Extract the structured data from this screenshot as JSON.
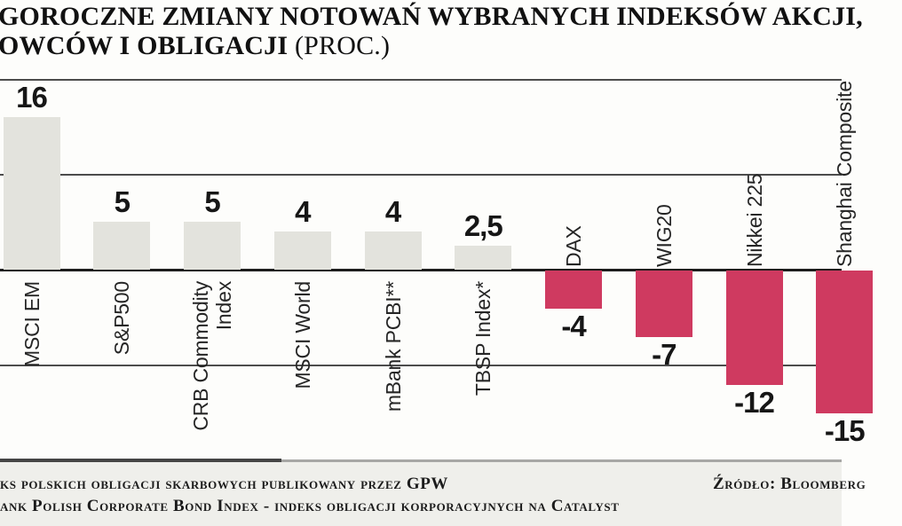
{
  "title": {
    "line1": "GOROCZNE ZMIANY NOTOWAŃ WYBRANYCH INDEKSÓW AKCJI,",
    "line2_bold": "OWCÓW I OBLIGACJI ",
    "line2_paren": "(PROC.)"
  },
  "chart_data": {
    "type": "bar",
    "title": "GOROCZNE ZMIANY NOTOWAŃ WYBRANYCH INDEKSÓW AKCJI, OWCÓW I OBLIGACJI (PROC.)",
    "categories": [
      "MSCI EM",
      "S&P500",
      "CRB Commodity Index",
      "MSCI World",
      "mBank PCBI**",
      "TBSP Index*",
      "DAX",
      "WIG20",
      "Nikkei 225",
      "Shanghai Composite"
    ],
    "category_lines": [
      [
        "MSCI EM"
      ],
      [
        "S&P500"
      ],
      [
        "CRB Commodity",
        "Index"
      ],
      [
        "MSCI World"
      ],
      [
        "mBank PCBI**"
      ],
      [
        "TBSP Index*"
      ],
      [
        "DAX"
      ],
      [
        "WIG20"
      ],
      [
        "Nikkei 225"
      ],
      [
        "Shanghai Composite"
      ]
    ],
    "values": [
      16,
      5,
      5,
      4,
      4,
      2.5,
      -4,
      -7,
      -12,
      -15
    ],
    "value_labels": [
      "16",
      "5",
      "5",
      "4",
      "4",
      "2,5",
      "-4",
      "-7",
      "-12",
      "-15"
    ],
    "ylim": [
      -20,
      20
    ],
    "gridlines": [
      20,
      10,
      0,
      -10
    ],
    "grid": true,
    "legend_position": "none",
    "colors": {
      "positive_bar": "#e3e3dd",
      "negative_bar": "#cf3a60",
      "gridline": "#4c4c4c",
      "zero_line": "#1c1c1c",
      "value_text": "#161616",
      "category_text": "#262626"
    }
  },
  "footer": {
    "note1": "ks polskich obligacji skarbowych publikowany przez GPW",
    "note2": "ank Polish Corporate Bond Index - indeks obligacji korporacyjnych na Catalyst",
    "source": "Źródło: Bloomberg"
  }
}
